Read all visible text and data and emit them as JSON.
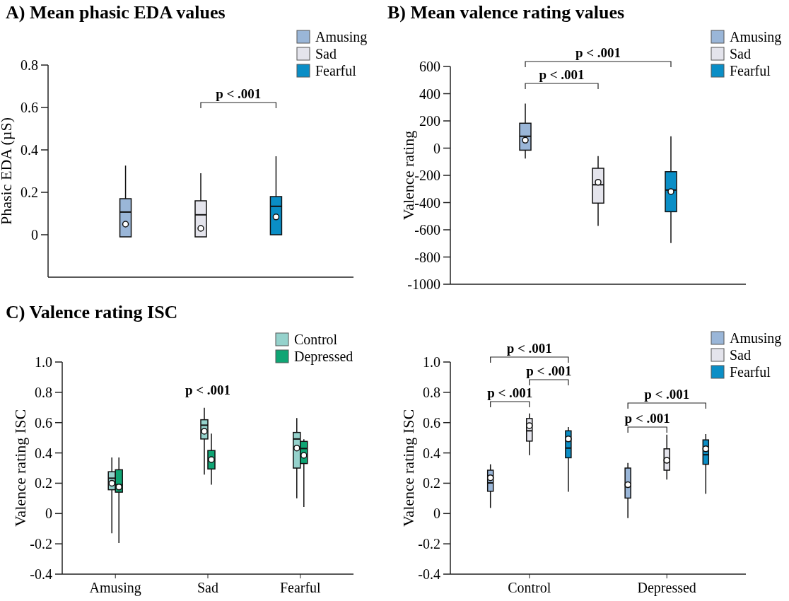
{
  "chart_data": [
    {
      "type": "box",
      "title": "A) Mean phasic EDA values",
      "ylabel": "Phasic EDA (µS)",
      "categories": [
        null
      ],
      "ylim": [
        -0.2,
        0.8
      ],
      "yticks": [
        0,
        0.2,
        0.4,
        0.6,
        0.8
      ],
      "legend": "top right",
      "annotations": [
        "p < .001"
      ],
      "series": [
        {
          "name": "Amusing",
          "color": "#9ab6d8",
          "boxes": [
            {
              "low": -0.01,
              "q1": -0.01,
              "median": 0.107,
              "q3": 0.17,
              "high": 0.326,
              "mean": 0.05
            }
          ]
        },
        {
          "name": "Sad",
          "color": "#e4e4ec",
          "boxes": [
            {
              "low": -0.01,
              "q1": -0.01,
              "median": 0.094,
              "q3": 0.16,
              "high": 0.29,
              "mean": 0.03
            }
          ]
        },
        {
          "name": "Fearful",
          "color": "#0a8ec6",
          "boxes": [
            {
              "low": 0,
              "q1": 0,
              "median": 0.134,
              "q3": 0.18,
              "high": 0.37,
              "mean": 0.084
            }
          ]
        }
      ]
    },
    {
      "type": "box",
      "title": "B) Mean valence rating values",
      "ylabel": "Valence rating",
      "categories": [
        null
      ],
      "ylim": [
        -1000,
        600
      ],
      "yticks": [
        -1000,
        -800,
        -600,
        -400,
        -200,
        0,
        200,
        400,
        600
      ],
      "legend": "top right",
      "annotations": [
        "p < .001",
        "p < .001"
      ],
      "series": [
        {
          "name": "Amusing",
          "color": "#9ab6d8",
          "boxes": [
            {
              "low": -77,
              "q1": -15,
              "median": 87,
              "q3": 183,
              "high": 327,
              "mean": 58
            }
          ]
        },
        {
          "name": "Sad",
          "color": "#e4e4ec",
          "boxes": [
            {
              "low": -571,
              "q1": -404,
              "median": -269,
              "q3": -148,
              "high": -58,
              "mean": -250
            }
          ]
        },
        {
          "name": "Fearful",
          "color": "#0a8ec6",
          "boxes": [
            {
              "low": -698,
              "q1": -467,
              "median": -308,
              "q3": -173,
              "high": 87,
              "mean": -319
            }
          ]
        }
      ]
    },
    {
      "type": "box",
      "title": "C) Valence rating ISC",
      "ylabel": "Valence rating ISC",
      "categories": [
        "Amusing",
        "Sad",
        "Fearful"
      ],
      "ylim": [
        -0.4,
        1.0
      ],
      "yticks": [
        {
          "value": -0.4,
          "label": "-0.4"
        },
        {
          "value": -0.2,
          "label": "-0.2"
        },
        0,
        {
          "value": 0.2,
          "label": "0.2"
        },
        {
          "value": 0.4,
          "label": "0.4"
        },
        {
          "value": 0.6,
          "label": "0.6"
        },
        {
          "value": 0.8,
          "label": "0.8"
        },
        {
          "value": 1,
          "label": "1.0"
        }
      ],
      "legend": "top right",
      "annotations": [
        "p < .001"
      ],
      "series": [
        {
          "name": "Control",
          "color": "#95d2cc",
          "boxes": [
            {
              "low": -0.13,
              "q1": 0.157,
              "median": 0.233,
              "q3": 0.276,
              "high": 0.37,
              "mean": 0.2
            },
            {
              "low": 0.257,
              "q1": 0.492,
              "median": 0.583,
              "q3": 0.619,
              "high": 0.698,
              "mean": 0.543
            },
            {
              "low": 0.1,
              "q1": 0.3,
              "median": 0.492,
              "q3": 0.535,
              "high": 0.63,
              "mean": 0.432
            }
          ]
        },
        {
          "name": "Depressed",
          "color": "#0fa574",
          "boxes": [
            {
              "low": -0.195,
              "q1": 0.141,
              "median": 0.19,
              "q3": 0.289,
              "high": 0.37,
              "mean": 0.175
            },
            {
              "low": 0.19,
              "q1": 0.294,
              "median": 0.352,
              "q3": 0.416,
              "high": 0.527,
              "mean": 0.356
            },
            {
              "low": 0.043,
              "q1": 0.33,
              "median": 0.429,
              "q3": 0.476,
              "high": 0.49,
              "mean": 0.384
            }
          ]
        }
      ]
    },
    {
      "type": "box",
      "ylabel": "Valence rating ISC",
      "categories": [
        "Control",
        "Depressed"
      ],
      "ylim": [
        -0.4,
        1.0
      ],
      "yticks": [
        {
          "value": -0.4,
          "label": "-0.4"
        },
        {
          "value": -0.2,
          "label": "-0.2"
        },
        0,
        {
          "value": 0.2,
          "label": "0.2"
        },
        {
          "value": 0.4,
          "label": "0.4"
        },
        {
          "value": 0.6,
          "label": "0.6"
        },
        {
          "value": 0.8,
          "label": "0.8"
        },
        {
          "value": 1,
          "label": "1.0"
        }
      ],
      "legend": "top right",
      "annotations": [
        "p < .001",
        "p < .001",
        "p < .001",
        "p < .001",
        "p < .001"
      ],
      "series": [
        {
          "name": "Amusing",
          "color": "#9ab6d8",
          "boxes": [
            {
              "low": 0.037,
              "q1": 0.147,
              "median": 0.202,
              "q3": 0.286,
              "high": 0.325,
              "mean": 0.236
            },
            {
              "low": -0.03,
              "q1": 0.102,
              "median": 0.178,
              "q3": 0.3,
              "high": 0.334,
              "mean": 0.19
            }
          ]
        },
        {
          "name": "Sad",
          "color": "#e4e4ec",
          "boxes": [
            {
              "low": 0.385,
              "q1": 0.478,
              "median": 0.546,
              "q3": 0.627,
              "high": 0.66,
              "mean": 0.58
            },
            {
              "low": 0.224,
              "q1": 0.286,
              "median": 0.351,
              "q3": 0.427,
              "high": 0.52,
              "mean": 0.351
            }
          ]
        },
        {
          "name": "Fearful",
          "color": "#0a8ec6",
          "boxes": [
            {
              "low": 0.144,
              "q1": 0.368,
              "median": 0.432,
              "q3": 0.546,
              "high": 0.571,
              "mean": 0.492
            },
            {
              "low": 0.13,
              "q1": 0.325,
              "median": 0.388,
              "q3": 0.486,
              "high": 0.524,
              "mean": 0.427
            }
          ]
        }
      ]
    }
  ]
}
